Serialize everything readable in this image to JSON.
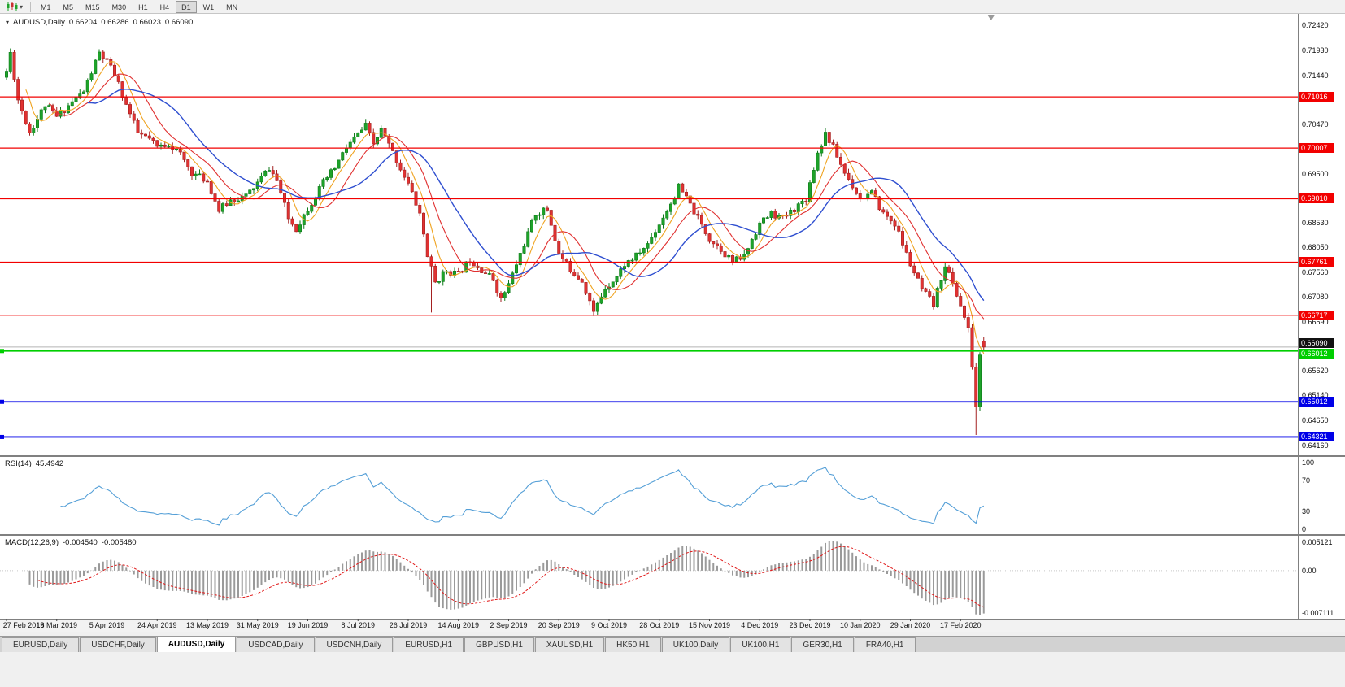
{
  "toolbar": {
    "chart_icon": "candlestick-chart-icon",
    "timeframes": [
      "M1",
      "M5",
      "M15",
      "M30",
      "H1",
      "H4",
      "D1",
      "W1",
      "MN"
    ],
    "active_timeframe": "D1"
  },
  "chart": {
    "symbol": "AUDUSD,Daily",
    "ohlc": {
      "open": "0.66204",
      "high": "0.66286",
      "low": "0.66023",
      "close": "0.66090"
    },
    "price_axis": {
      "ticks": [
        "0.72420",
        "0.71930",
        "0.71440",
        "0.70470",
        "0.69500",
        "0.68530",
        "0.68050",
        "0.67560",
        "0.67080",
        "0.66590",
        "0.65620",
        "0.65140",
        "0.64650",
        "0.64160"
      ],
      "current_price": "0.66090"
    },
    "levels": [
      {
        "price": "0.71016",
        "color": "red"
      },
      {
        "price": "0.70007",
        "color": "red"
      },
      {
        "price": "0.69010",
        "color": "red"
      },
      {
        "price": "0.67761",
        "color": "red"
      },
      {
        "price": "0.66717",
        "color": "red"
      },
      {
        "price": "0.66012",
        "color": "green"
      },
      {
        "price": "0.65012",
        "color": "blue"
      },
      {
        "price": "0.64321",
        "color": "blue"
      }
    ],
    "colors": {
      "bull": "#1ea32a",
      "bear": "#e03232",
      "bull_dark": "#0d7a19",
      "bear_dark": "#a32020",
      "ma_fast": "#efa320",
      "ma_mid": "#e03030",
      "ma_slow": "#2f4fd0",
      "level_red": "#f20000",
      "level_green": "#00ce00",
      "level_blue": "#0000e8",
      "badge_black": "#111111",
      "price_line": "#b4b4b4",
      "rsi_line": "#549fd7",
      "macd_hist": "#9a9a9a",
      "macd_signal": "#e01818"
    }
  },
  "indicators": {
    "rsi": {
      "name": "RSI(14)",
      "value": "45.4942",
      "axis": [
        "100",
        "70",
        "30",
        "0"
      ]
    },
    "macd": {
      "name": "MACD(12,26,9)",
      "value_main": "-0.004540",
      "value_signal": "-0.005480",
      "axis_max": "0.005121",
      "axis_zero": "0.00",
      "axis_min": "-0.007111"
    }
  },
  "date_axis": {
    "labels": [
      {
        "t": "27 Feb 2019",
        "i": 0
      },
      {
        "t": "18 Mar 2019",
        "i": 13
      },
      {
        "t": "5 Apr 2019",
        "i": 26
      },
      {
        "t": "24 Apr 2019",
        "i": 39
      },
      {
        "t": "13 May 2019",
        "i": 52
      },
      {
        "t": "31 May 2019",
        "i": 65
      },
      {
        "t": "19 Jun 2019",
        "i": 78
      },
      {
        "t": "8 Jul 2019",
        "i": 91
      },
      {
        "t": "26 Jul 2019",
        "i": 104
      },
      {
        "t": "14 Aug 2019",
        "i": 117
      },
      {
        "t": "2 Sep 2019",
        "i": 130
      },
      {
        "t": "20 Sep 2019",
        "i": 143
      },
      {
        "t": "9 Oct 2019",
        "i": 156
      },
      {
        "t": "28 Oct 2019",
        "i": 169
      },
      {
        "t": "15 Nov 2019",
        "i": 182
      },
      {
        "t": "4 Dec 2019",
        "i": 195
      },
      {
        "t": "23 Dec 2019",
        "i": 208
      },
      {
        "t": "10 Jan 2020",
        "i": 221
      },
      {
        "t": "29 Jan 2020",
        "i": 234
      },
      {
        "t": "17 Feb 2020",
        "i": 247
      }
    ]
  },
  "tabs": [
    "EURUSD,Daily",
    "USDCHF,Daily",
    "AUDUSD,Daily",
    "USDCAD,Daily",
    "USDCNH,Daily",
    "EURUSD,H1",
    "GBPUSD,H1",
    "XAUUSD,H1",
    "HK50,H1",
    "UK100,Daily",
    "UK100,H1",
    "GER30,H1",
    "FRA40,H1"
  ],
  "active_tab": "AUDUSD,Daily",
  "chart_data": {
    "type": "candlestick",
    "symbol": "AUDUSD",
    "timeframe": "Daily",
    "title": "AUDUSD,Daily 0.66204 0.66286 0.66023 0.66090",
    "x_range": [
      "27 Feb 2019",
      "17 Feb 2020"
    ],
    "y_axis_top": 0.7265,
    "y_axis_bottom": 0.6396,
    "candle_count": 254,
    "price_path": [
      [
        0,
        0.7152
      ],
      [
        1,
        0.7188
      ],
      [
        3,
        0.7096
      ],
      [
        6,
        0.7032
      ],
      [
        10,
        0.7086
      ],
      [
        13,
        0.7062
      ],
      [
        17,
        0.7092
      ],
      [
        20,
        0.7112
      ],
      [
        24,
        0.7188
      ],
      [
        26,
        0.717
      ],
      [
        28,
        0.7146
      ],
      [
        31,
        0.7086
      ],
      [
        34,
        0.703
      ],
      [
        37,
        0.7018
      ],
      [
        39,
        0.7002
      ],
      [
        42,
        0.701
      ],
      [
        45,
        0.6988
      ],
      [
        48,
        0.6952
      ],
      [
        52,
        0.6936
      ],
      [
        55,
        0.6878
      ],
      [
        58,
        0.6898
      ],
      [
        62,
        0.6906
      ],
      [
        65,
        0.6932
      ],
      [
        68,
        0.6962
      ],
      [
        70,
        0.6936
      ],
      [
        73,
        0.6862
      ],
      [
        75,
        0.6842
      ],
      [
        78,
        0.6882
      ],
      [
        82,
        0.6932
      ],
      [
        85,
        0.6962
      ],
      [
        88,
        0.7002
      ],
      [
        91,
        0.7028
      ],
      [
        93,
        0.7044
      ],
      [
        95,
        0.7008
      ],
      [
        97,
        0.7036
      ],
      [
        100,
        0.6992
      ],
      [
        104,
        0.693
      ],
      [
        107,
        0.6872
      ],
      [
        109,
        0.679
      ],
      [
        111,
        0.6736
      ],
      [
        114,
        0.676
      ],
      [
        117,
        0.6752
      ],
      [
        120,
        0.6782
      ],
      [
        123,
        0.6762
      ],
      [
        126,
        0.6742
      ],
      [
        128,
        0.6702
      ],
      [
        130,
        0.6732
      ],
      [
        134,
        0.6812
      ],
      [
        137,
        0.6872
      ],
      [
        140,
        0.688
      ],
      [
        143,
        0.6792
      ],
      [
        146,
        0.6762
      ],
      [
        149,
        0.674
      ],
      [
        151,
        0.67
      ],
      [
        152,
        0.6676
      ],
      [
        155,
        0.6726
      ],
      [
        158,
        0.6748
      ],
      [
        160,
        0.6772
      ],
      [
        163,
        0.6788
      ],
      [
        166,
        0.6812
      ],
      [
        169,
        0.6852
      ],
      [
        172,
        0.6892
      ],
      [
        174,
        0.6924
      ],
      [
        176,
        0.6902
      ],
      [
        179,
        0.6862
      ],
      [
        182,
        0.6822
      ],
      [
        185,
        0.6802
      ],
      [
        188,
        0.6776
      ],
      [
        191,
        0.6788
      ],
      [
        193,
        0.6822
      ],
      [
        195,
        0.6852
      ],
      [
        198,
        0.6872
      ],
      [
        201,
        0.6862
      ],
      [
        204,
        0.6882
      ],
      [
        207,
        0.6902
      ],
      [
        210,
        0.6992
      ],
      [
        212,
        0.703
      ],
      [
        214,
        0.7002
      ],
      [
        217,
        0.6952
      ],
      [
        221,
        0.6902
      ],
      [
        224,
        0.6912
      ],
      [
        227,
        0.6872
      ],
      [
        230,
        0.6852
      ],
      [
        232,
        0.6812
      ],
      [
        234,
        0.6772
      ],
      [
        237,
        0.6722
      ],
      [
        240,
        0.6692
      ],
      [
        243,
        0.6772
      ],
      [
        245,
        0.6732
      ],
      [
        247,
        0.6692
      ],
      [
        249,
        0.6642
      ],
      [
        250,
        0.6572
      ],
      [
        251,
        0.6492
      ],
      [
        252,
        0.659
      ],
      [
        253,
        0.6609
      ]
    ],
    "spikes": [
      {
        "i": 1,
        "high": 0.7196
      },
      {
        "i": 24,
        "high": 0.71935
      },
      {
        "i": 110,
        "low": 0.6677
      },
      {
        "i": 152,
        "low": 0.667
      },
      {
        "i": 251,
        "low": 0.6436
      }
    ],
    "moving_averages": [
      {
        "period": 6,
        "color_key": "ma_fast"
      },
      {
        "period": 12,
        "color_key": "ma_mid"
      },
      {
        "period": 22,
        "color_key": "ma_slow"
      }
    ],
    "horizontal_levels": [
      0.71016,
      0.70007,
      0.6901,
      0.67761,
      0.66717,
      0.66012,
      0.65012,
      0.64321
    ],
    "rsi_period": 14,
    "macd_params": [
      12,
      26,
      9
    ]
  }
}
